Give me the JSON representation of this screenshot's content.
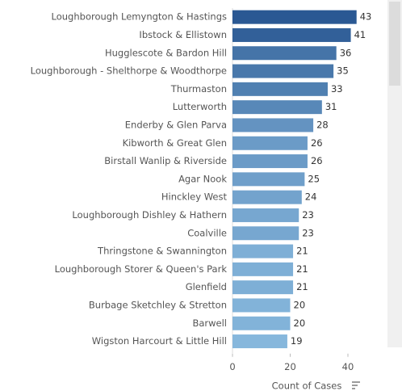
{
  "chart_data": {
    "type": "hbar",
    "categories": [
      "Loughborough Lemyngton & Hastings",
      "Ibstock & Ellistown",
      "Hugglescote & Bardon Hill",
      "Loughborough - Shelthorpe & Woodthorpe",
      "Thurmaston",
      "Lutterworth",
      "Enderby & Glen Parva",
      "Kibworth & Great Glen",
      "Birstall Wanlip & Riverside",
      "Agar Nook",
      "Hinckley West",
      "Loughborough Dishley & Hathern",
      "Coalville",
      "Thringstone & Swannington",
      "Loughborough Storer & Queen's Park",
      "Glenfield",
      "Burbage Sketchley & Stretton",
      "Barwell",
      "Wigston Harcourt & Little Hill"
    ],
    "values": [
      43,
      41,
      36,
      35,
      33,
      31,
      28,
      26,
      26,
      25,
      24,
      23,
      23,
      21,
      21,
      21,
      20,
      20,
      19
    ],
    "x_label": "Count of Cases",
    "xlim": [
      0,
      50
    ],
    "xticks": [
      0,
      20,
      40
    ],
    "color_range": [
      "#86b7dc",
      "#2a5893"
    ]
  }
}
